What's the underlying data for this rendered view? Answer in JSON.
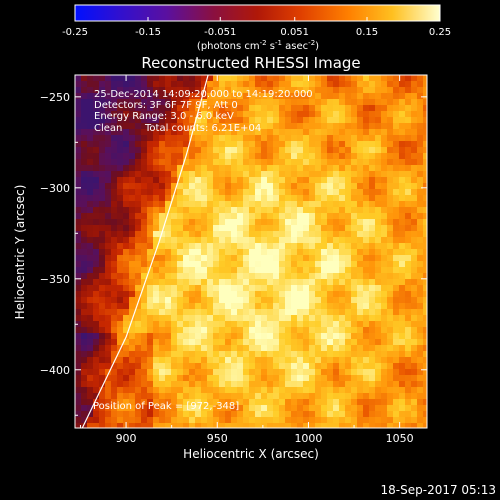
{
  "chart_data": {
    "type": "heatmap",
    "title": "Reconstructed RHESSI Image",
    "xlabel": "Heliocentric X (arcsec)",
    "ylabel": "Heliocentric Y (arcsec)",
    "xlim": [
      872,
      1065
    ],
    "ylim": [
      -432,
      -238
    ],
    "x_ticks": [
      "900",
      "950",
      "1000",
      "1050"
    ],
    "y_ticks": [
      "-250",
      "-300",
      "-350",
      "-400"
    ],
    "colorbar": {
      "range": [
        -0.25,
        0.25
      ],
      "ticks": [
        "-0.25",
        "-0.15",
        "-0.051",
        "0.051",
        "0.15",
        "0.25"
      ],
      "units_prefix": "(photons cm",
      "units_sup1": "-2",
      "units_mid": " s",
      "units_sup2": "-1",
      "units_mid2": " asec",
      "units_sup3": "-2",
      "units_suffix": ")"
    },
    "annotations": {
      "time": "25-Dec-2014 14:09:20.000 to 14:19:20.000",
      "detectors": "Detectors: 3F 6F 7F 9F, Att 0",
      "energy": "Energy Range: 3.0 - 6.0 keV",
      "method": "Clean",
      "counts": "Total counts: 6.21E+04",
      "peak": "Position of Peak = [972,-348]"
    },
    "peak": [
      972,
      -348
    ],
    "limb_curve": [
      [
        876,
        -432
      ],
      [
        900,
        -382
      ],
      [
        918,
        -330
      ],
      [
        933,
        -282
      ],
      [
        945,
        -238
      ]
    ],
    "footer_date": "18-Sep-2017 05:13"
  }
}
